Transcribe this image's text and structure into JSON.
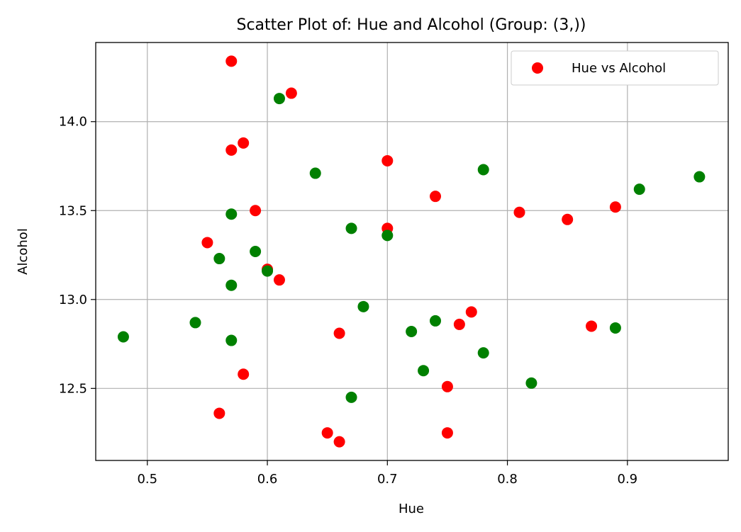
{
  "chart_data": {
    "type": "scatter",
    "title": "Scatter Plot of: Hue and Alcohol (Group: (3,))",
    "xlabel": "Hue",
    "ylabel": "Alcohol",
    "xlim": [
      0.457,
      0.984
    ],
    "ylim": [
      12.095,
      14.445
    ],
    "xticks": [
      0.5,
      0.6,
      0.7,
      0.8,
      0.9
    ],
    "xtick_labels": [
      "0.5",
      "0.6",
      "0.7",
      "0.8",
      "0.9"
    ],
    "yticks": [
      12.5,
      13.0,
      13.5,
      14.0
    ],
    "ytick_labels": [
      "12.5",
      "13.0",
      "13.5",
      "14.0"
    ],
    "grid": true,
    "legend": {
      "placement": "top-right",
      "entries": [
        {
          "label": "Hue vs Alcohol",
          "color": "#ff0000"
        }
      ]
    },
    "series": [
      {
        "name": "Hue vs Alcohol",
        "color": "#ff0000",
        "x": [
          0.57,
          0.62,
          0.57,
          0.58,
          0.7,
          0.74,
          0.59,
          0.81,
          0.85,
          0.89,
          0.7,
          0.55,
          0.6,
          0.61,
          0.77,
          0.76,
          0.66,
          0.87,
          0.58,
          0.75,
          0.56,
          0.65,
          0.66,
          0.75
        ],
        "y": [
          14.34,
          14.16,
          13.84,
          13.88,
          13.78,
          13.58,
          13.5,
          13.49,
          13.45,
          13.52,
          13.4,
          13.32,
          13.17,
          13.11,
          12.93,
          12.86,
          12.81,
          12.85,
          12.58,
          12.51,
          12.36,
          12.25,
          12.2,
          12.25
        ]
      },
      {
        "color": "#008000",
        "x": [
          0.61,
          0.64,
          0.78,
          0.96,
          0.91,
          0.57,
          0.67,
          0.7,
          0.56,
          0.59,
          0.6,
          0.57,
          0.68,
          0.48,
          0.54,
          0.57,
          0.72,
          0.74,
          0.89,
          0.78,
          0.73,
          0.82,
          0.67
        ],
        "y": [
          14.13,
          13.71,
          13.73,
          13.69,
          13.62,
          13.48,
          13.4,
          13.36,
          13.23,
          13.27,
          13.16,
          13.08,
          12.96,
          12.79,
          12.87,
          12.77,
          12.82,
          12.88,
          12.84,
          12.7,
          12.6,
          12.53,
          12.45
        ]
      }
    ]
  }
}
